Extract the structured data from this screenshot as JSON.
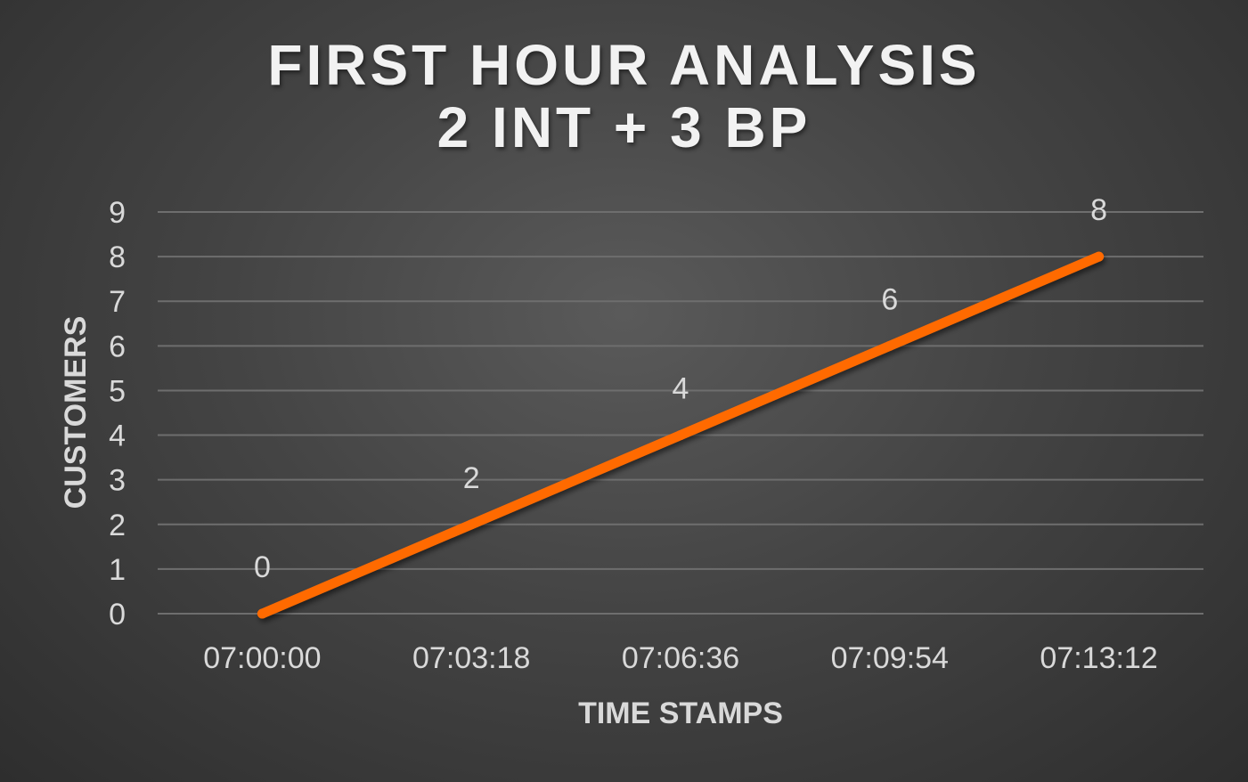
{
  "chart_data": {
    "type": "line",
    "title_lines": [
      "FIRST HOUR ANALYSIS",
      "2 INT + 3 BP"
    ],
    "xlabel": "TIME STAMPS",
    "ylabel": "CUSTOMERS",
    "categories": [
      "07:00:00",
      "07:03:18",
      "07:06:36",
      "07:09:54",
      "07:13:12"
    ],
    "series": [
      {
        "values": [
          0,
          2,
          4,
          6,
          8
        ],
        "color": "#ff6a00"
      }
    ],
    "data_labels": [
      "0",
      "2",
      "4",
      "6",
      "8"
    ],
    "ylim": [
      0,
      9
    ],
    "yticks": [
      "0",
      "1",
      "2",
      "3",
      "4",
      "5",
      "6",
      "7",
      "8",
      "9"
    ],
    "grid": true,
    "legend": "none",
    "colors": {
      "background": "#444444",
      "text": "#d9d9d9",
      "grid": "#6e6e6e"
    }
  }
}
